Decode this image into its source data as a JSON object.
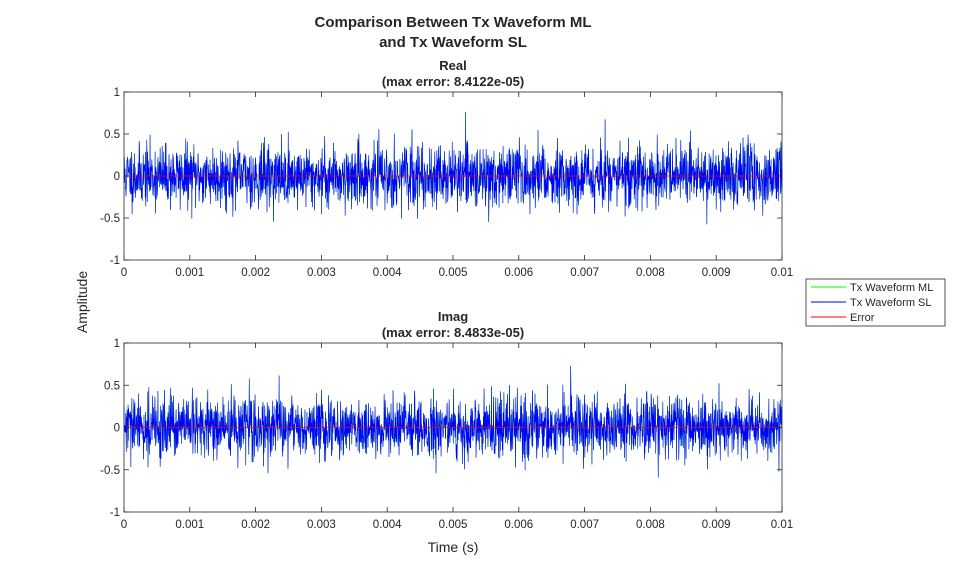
{
  "figure": {
    "title_line1": "Comparison Between Tx Waveform ML",
    "title_line2": "and Tx Waveform SL",
    "ylabel": "Amplitude",
    "xlabel": "Time (s)"
  },
  "legend": {
    "placement": "right",
    "items": [
      {
        "label": "Tx Waveform ML",
        "color": "#00ff00"
      },
      {
        "label": "Tx Waveform SL",
        "color": "#0000ff"
      },
      {
        "label": "Error",
        "color": "#ff0000"
      }
    ]
  },
  "chart_data": [
    {
      "type": "line",
      "title": "Real",
      "subtitle": "(max error: 8.4122e-05)",
      "xlim": [
        0,
        0.01
      ],
      "ylim": [
        -1,
        1
      ],
      "xticks": [
        0,
        0.001,
        0.002,
        0.003,
        0.004,
        0.005,
        0.006,
        0.007,
        0.008,
        0.009,
        0.01
      ],
      "xtick_labels": [
        "0",
        "0.001",
        "0.002",
        "0.003",
        "0.004",
        "0.005",
        "0.006",
        "0.007",
        "0.008",
        "0.009",
        "0.01"
      ],
      "yticks": [
        -1,
        -0.5,
        0,
        0.5,
        1
      ],
      "ytick_labels": [
        "-1",
        "-0.5",
        "0",
        "0.5",
        "1"
      ],
      "series": [
        {
          "name": "Tx Waveform ML",
          "color": "#00ff00",
          "signal": "noise",
          "rms": 0.18,
          "peak": 0.76
        },
        {
          "name": "Tx Waveform SL",
          "color": "#0000ff",
          "signal": "noise",
          "rms": 0.18,
          "peak": 0.76
        },
        {
          "name": "Error",
          "color": "#ff0000",
          "signal": "constant",
          "value": 0
        }
      ],
      "grid": false,
      "seed": 11
    },
    {
      "type": "line",
      "title": "Imag",
      "subtitle": "(max error: 8.4833e-05)",
      "xlim": [
        0,
        0.01
      ],
      "ylim": [
        -1,
        1
      ],
      "xticks": [
        0,
        0.001,
        0.002,
        0.003,
        0.004,
        0.005,
        0.006,
        0.007,
        0.008,
        0.009,
        0.01
      ],
      "xtick_labels": [
        "0",
        "0.001",
        "0.002",
        "0.003",
        "0.004",
        "0.005",
        "0.006",
        "0.007",
        "0.008",
        "0.009",
        "0.01"
      ],
      "yticks": [
        -1,
        -0.5,
        0,
        0.5,
        1
      ],
      "ytick_labels": [
        "-1",
        "-0.5",
        "0",
        "0.5",
        "1"
      ],
      "series": [
        {
          "name": "Tx Waveform ML",
          "color": "#00ff00",
          "signal": "noise",
          "rms": 0.18,
          "peak": 0.76
        },
        {
          "name": "Tx Waveform SL",
          "color": "#0000ff",
          "signal": "noise",
          "rms": 0.18,
          "peak": 0.76
        },
        {
          "name": "Error",
          "color": "#ff0000",
          "signal": "constant",
          "value": 0
        }
      ],
      "grid": false,
      "seed": 29
    }
  ]
}
